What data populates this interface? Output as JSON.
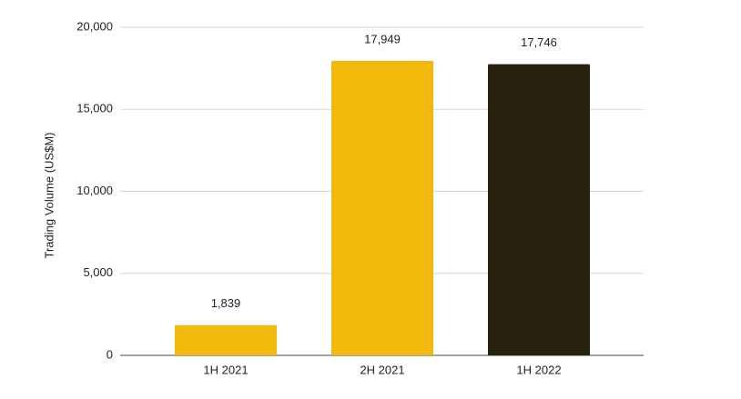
{
  "chart_data": {
    "type": "bar",
    "y_label": "Trading Volume (US$M)",
    "categories": [
      "1H 2021",
      "2H 2021",
      "1H 2022"
    ],
    "values": [
      1839,
      17949,
      17746
    ],
    "value_labels": [
      "1,839",
      "17,949",
      "17,746"
    ],
    "colors": [
      "#f0b90b",
      "#f0b90b",
      "#2a2110"
    ],
    "ylim": [
      0,
      20000
    ],
    "yticks": [
      0,
      {
        "value": 5000,
        "label": "5,000"
      },
      {
        "value": 10000,
        "label": "10,000"
      },
      {
        "value": 15000,
        "label": "15,000"
      },
      {
        "value": 20000,
        "label": "20,000"
      }
    ],
    "grid": true
  }
}
